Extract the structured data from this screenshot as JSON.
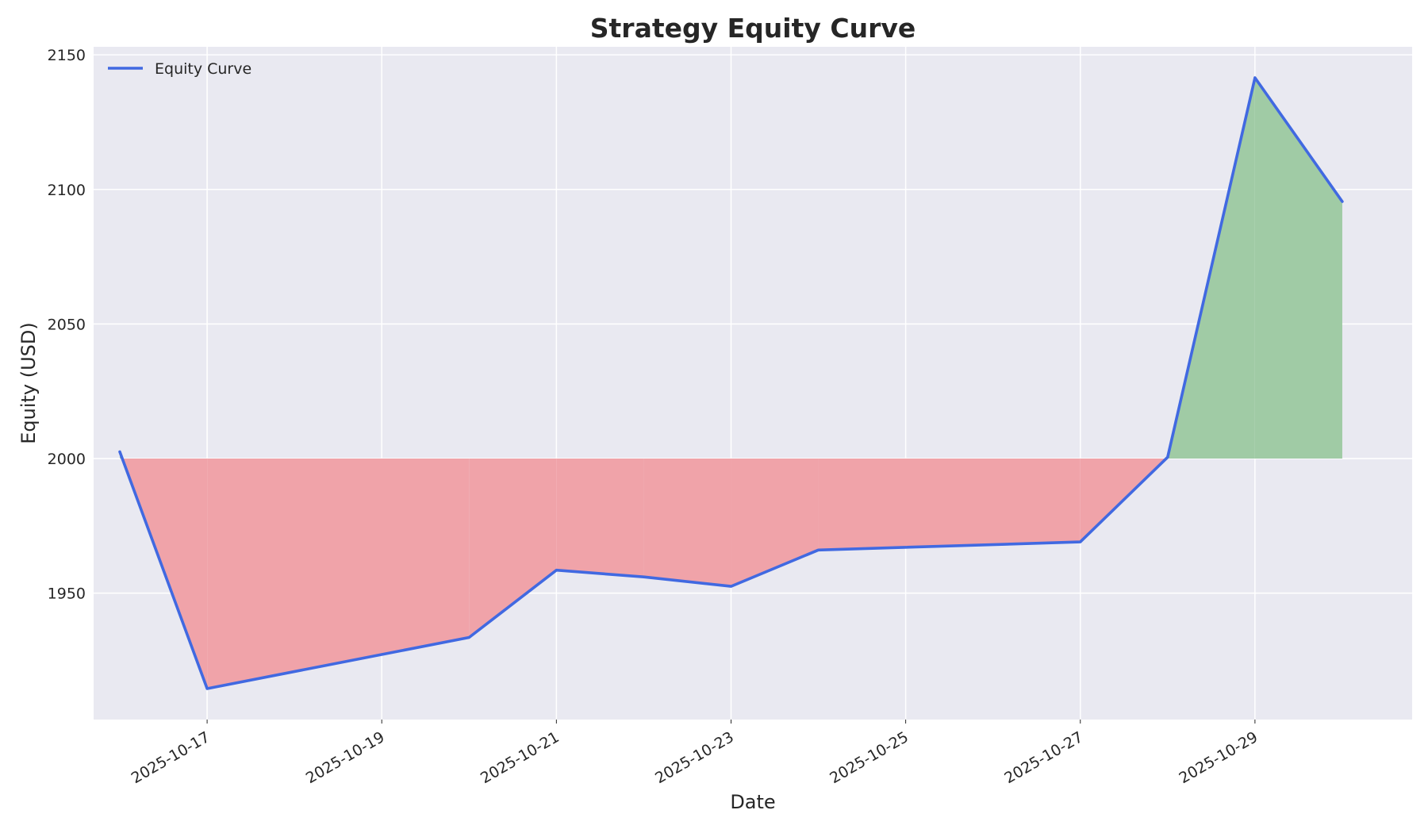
{
  "chart_data": {
    "type": "line",
    "title": "Strategy Equity Curve",
    "xlabel": "Date",
    "ylabel": "Equity (USD)",
    "baseline": 2000,
    "x": [
      "2025-10-16",
      "2025-10-17",
      "2025-10-20",
      "2025-10-21",
      "2025-10-22",
      "2025-10-23",
      "2025-10-24",
      "2025-10-27",
      "2025-10-28",
      "2025-10-29",
      "2025-10-30"
    ],
    "series": [
      {
        "name": "Equity Curve",
        "values": [
          2002.5,
          1914.5,
          1933.5,
          1958.5,
          1956.0,
          1952.5,
          1966.0,
          1969.0,
          2000.5,
          2141.5,
          2095.5
        ]
      }
    ],
    "x_ticks": [
      "2025-10-17",
      "2025-10-19",
      "2025-10-21",
      "2025-10-23",
      "2025-10-25",
      "2025-10-27",
      "2025-10-29"
    ],
    "y_ticks": [
      1950,
      2000,
      2050,
      2100,
      2150
    ],
    "xlim": [
      "2025-10-15 16:48",
      "2025-10-30 19:12"
    ],
    "ylim": [
      1903,
      2153
    ],
    "grid": true,
    "legend": "top-left",
    "colors": {
      "line": "#4169e1",
      "above_fill": "#a0cba5",
      "below_fill": "#f0a3a9",
      "plot_background": "#e9e9f1",
      "grid": "#ffffff"
    }
  }
}
